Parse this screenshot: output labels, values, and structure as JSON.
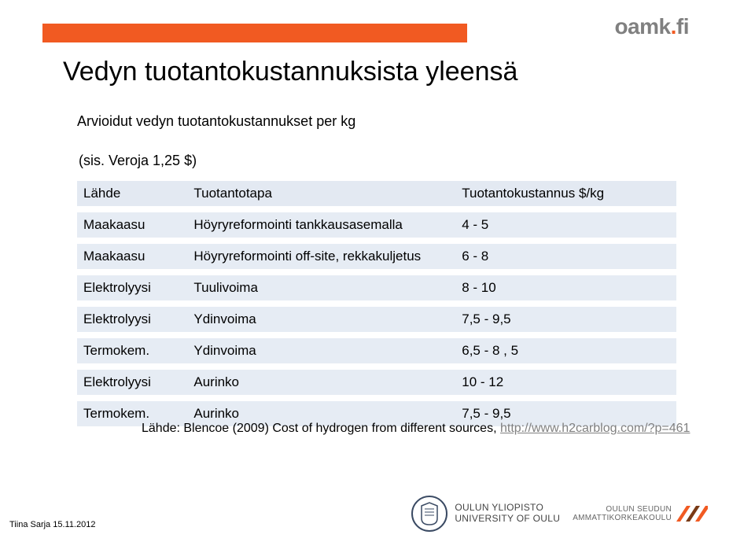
{
  "brand": {
    "text_left": "oamk",
    "text_dot": ".",
    "text_right": "fi",
    "color_left": "#808080",
    "color_dot": "#f15a22",
    "color_right": "#808080"
  },
  "accent_bar_color": "#f15a22",
  "title": "Vedyn tuotantokustannuksista yleensä",
  "subtitle": "Arvioidut vedyn tuotantokustannukset per kg",
  "note": "(sis. Veroja 1,25 $)",
  "table": {
    "header_bg": "#e3e9f2",
    "row_bg": "#e6ecf4",
    "columns": [
      "Lähde",
      "Tuotantotapa",
      "Tuotantokustannus $/kg"
    ],
    "col_widths": [
      "140px",
      "340px",
      "280px"
    ],
    "rows": [
      [
        "Maakaasu",
        "Höyryreformointi tankkausasemalla",
        "4 - 5"
      ],
      [
        "Maakaasu",
        "Höyryreformointi off-site, rekkakuljetus",
        "6 - 8"
      ],
      [
        "Elektrolyysi",
        "Tuulivoima",
        "8 - 10"
      ],
      [
        "Elektrolyysi",
        "Ydinvoima",
        "7,5 - 9,5"
      ],
      [
        "Termokem.",
        "Ydinvoima",
        "6,5 - 8 , 5"
      ],
      [
        "Elektrolyysi",
        "Aurinko",
        "10 - 12"
      ],
      [
        "Termokem.",
        "Aurinko",
        "7,5 - 9,5"
      ]
    ]
  },
  "source": {
    "prefix": "Lähde: Blencoe (2009) Cost of hydrogen from different sources, ",
    "link_text": "http://www.h2carblog.com/?p=461",
    "link_href": "http://www.h2carblog.com/?p=461"
  },
  "footer_author": "Tiina Sarja 15.11.2012",
  "logos": {
    "uni_text_line1": "OULUN YLIOPISTO",
    "uni_text_line2": "UNIVERSITY OF OULU",
    "amk_text_line1": "OULUN SEUDUN",
    "amk_text_line2": "AMMATTIKORKEAKOULU"
  }
}
